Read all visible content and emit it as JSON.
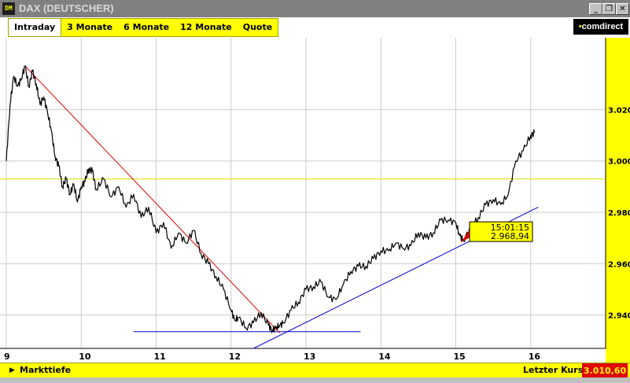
{
  "window": {
    "icon_text": "DM",
    "title": "DAX (DEUTSCHER)",
    "buttons": {
      "minimize": "_",
      "restore": "❐",
      "close": "✕"
    }
  },
  "toolbar": {
    "tabs": [
      {
        "label": "Intraday",
        "active": true
      },
      {
        "label": "3 Monate",
        "active": false
      },
      {
        "label": "6 Monate",
        "active": false
      },
      {
        "label": "12 Monate",
        "active": false
      },
      {
        "label": "Quote",
        "active": false
      }
    ],
    "logo_prefix": "•",
    "logo_text": "comdirect"
  },
  "bottom": {
    "markttiefe_label": "Markttiefe",
    "letzter_kurs_label": "Letzter Kurs",
    "letzter_kurs_value": "3.010,60"
  },
  "colors": {
    "accent_yellow": "#ffff00",
    "price_line": "#000000",
    "downtrend": "#e00000",
    "uptrend": "#0000cc",
    "reference_line": "#e0e000",
    "last_price_bg": "#e00000"
  },
  "chart_data": {
    "type": "line",
    "title": "",
    "xlabel": "",
    "ylabel": "",
    "x_ticks": [
      "9",
      "10",
      "11",
      "12",
      "13",
      "14",
      "15",
      "16"
    ],
    "y_ticks": [
      "2.940",
      "2.960",
      "2.980",
      "3.000",
      "3.020"
    ],
    "xlim": [
      9,
      17
    ],
    "ylim": [
      2927,
      3048
    ],
    "grid": true,
    "series": [
      {
        "x": [
          9.0,
          9.05,
          9.1,
          9.15,
          9.2,
          9.25,
          9.3,
          9.35,
          9.4,
          9.45,
          9.5,
          9.55,
          9.6,
          9.65,
          9.7,
          9.75,
          9.8,
          9.85,
          9.9,
          9.95,
          10.0,
          10.05,
          10.1,
          10.15,
          10.2,
          10.3,
          10.4,
          10.5,
          10.6,
          10.7,
          10.8,
          10.9,
          11.0,
          11.1,
          11.2,
          11.3,
          11.4,
          11.5,
          11.6,
          11.7,
          11.8,
          11.9,
          12.0,
          12.05,
          12.1,
          12.2,
          12.3,
          12.4,
          12.5,
          12.55,
          12.6,
          12.65,
          12.7,
          12.8,
          12.9,
          13.0,
          13.1,
          13.2,
          13.3,
          13.4,
          13.5,
          13.6,
          13.7,
          13.8,
          13.9,
          14.0,
          14.1,
          14.2,
          14.3,
          14.4,
          14.5,
          14.6,
          14.7,
          14.8,
          14.9,
          15.0,
          15.05,
          15.1,
          15.2,
          15.3,
          15.4,
          15.5,
          15.6,
          15.7,
          15.8,
          15.9,
          16.0,
          16.05
        ],
        "y": [
          3000,
          3022,
          3033,
          3029,
          3032,
          3037,
          3029,
          3035,
          3030,
          3022,
          3025,
          3019,
          3012,
          3002,
          2998,
          2990,
          2993,
          2987,
          2991,
          2984,
          2990,
          2992,
          2997,
          2996,
          2989,
          2993,
          2986,
          2990,
          2982,
          2987,
          2978,
          2982,
          2972,
          2976,
          2966,
          2972,
          2968,
          2973,
          2964,
          2960,
          2955,
          2950,
          2942,
          2938,
          2939,
          2935,
          2937,
          2941,
          2936,
          2934,
          2935,
          2936,
          2937,
          2942,
          2945,
          2950,
          2951,
          2953,
          2947,
          2946,
          2952,
          2957,
          2959,
          2959,
          2962,
          2965,
          2965,
          2968,
          2966,
          2967,
          2972,
          2970,
          2972,
          2977,
          2977,
          2976,
          2971,
          2969,
          2974,
          2978,
          2983,
          2985,
          2983,
          2987,
          3000,
          3004,
          3010,
          3011
        ]
      }
    ],
    "annotations": {
      "tooltip_time": "15:01:15",
      "tooltip_value": "2.968,94",
      "tooltip_x": 15.1,
      "tooltip_y": 2968.94,
      "reference_level": 2993,
      "support_level": 2933.5,
      "support_x": [
        10.7,
        13.73
      ],
      "downtrend": {
        "from": [
          9.25,
          3037
        ],
        "to": [
          12.65,
          2933
        ]
      },
      "uptrend": {
        "from": [
          12.3,
          2927
        ],
        "to": [
          16.1,
          2982
        ]
      }
    }
  }
}
